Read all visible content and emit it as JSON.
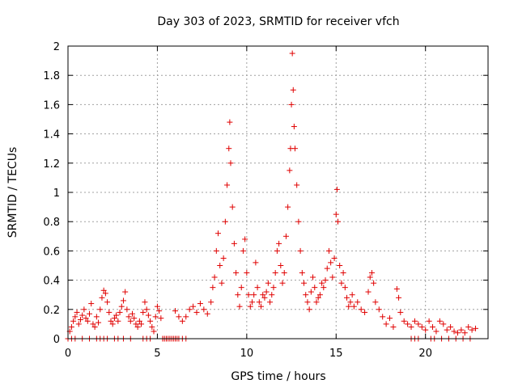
{
  "chart_data": {
    "type": "scatter",
    "title": "Day 303 of 2023, SRMTID for receiver vfch",
    "xlabel": "GPS time / hours",
    "ylabel": "SRMTID / TECUs",
    "xlim": [
      0,
      23.5
    ],
    "ylim": [
      0,
      2
    ],
    "xticks": [
      0,
      5,
      10,
      15,
      20
    ],
    "xtick_labels": [
      "0",
      "5",
      "10",
      "15",
      "20"
    ],
    "yticks": [
      0,
      0.2,
      0.4,
      0.6,
      0.8,
      1.0,
      1.2,
      1.4,
      1.6,
      1.8,
      2.0
    ],
    "ytick_labels": [
      "0",
      "0.2",
      "0.4",
      "0.6",
      "0.8",
      "1",
      "1.2",
      "1.4",
      "1.6",
      "1.8",
      "2"
    ],
    "grid": true,
    "marker": "+",
    "color": "#e00000",
    "series": [
      {
        "name": "SRMTID",
        "points": [
          [
            0.0,
            0.0
          ],
          [
            0.1,
            0.05
          ],
          [
            0.2,
            0.08
          ],
          [
            0.3,
            0.12
          ],
          [
            0.4,
            0.15
          ],
          [
            0.5,
            0.18
          ],
          [
            0.6,
            0.1
          ],
          [
            0.7,
            0.13
          ],
          [
            0.8,
            0.16
          ],
          [
            0.9,
            0.2
          ],
          [
            1.0,
            0.14
          ],
          [
            1.1,
            0.12
          ],
          [
            1.2,
            0.17
          ],
          [
            1.3,
            0.24
          ],
          [
            1.4,
            0.1
          ],
          [
            1.5,
            0.08
          ],
          [
            1.6,
            0.15
          ],
          [
            1.7,
            0.11
          ],
          [
            1.8,
            0.2
          ],
          [
            1.9,
            0.28
          ],
          [
            2.0,
            0.33
          ],
          [
            2.1,
            0.31
          ],
          [
            2.2,
            0.25
          ],
          [
            2.3,
            0.18
          ],
          [
            2.4,
            0.12
          ],
          [
            2.5,
            0.1
          ],
          [
            2.6,
            0.14
          ],
          [
            2.7,
            0.16
          ],
          [
            2.8,
            0.12
          ],
          [
            2.9,
            0.18
          ],
          [
            3.0,
            0.22
          ],
          [
            3.1,
            0.26
          ],
          [
            3.2,
            0.32
          ],
          [
            3.3,
            0.2
          ],
          [
            3.4,
            0.15
          ],
          [
            3.5,
            0.12
          ],
          [
            3.6,
            0.17
          ],
          [
            3.7,
            0.14
          ],
          [
            3.8,
            0.1
          ],
          [
            3.9,
            0.08
          ],
          [
            4.0,
            0.12
          ],
          [
            4.1,
            0.1
          ],
          [
            4.2,
            0.18
          ],
          [
            4.3,
            0.25
          ],
          [
            4.4,
            0.2
          ],
          [
            4.5,
            0.16
          ],
          [
            4.6,
            0.12
          ],
          [
            4.7,
            0.08
          ],
          [
            4.8,
            0.05
          ],
          [
            4.9,
            0.15
          ],
          [
            5.0,
            0.22
          ],
          [
            5.1,
            0.19
          ],
          [
            5.2,
            0.14
          ],
          [
            5.3,
            0.0
          ],
          [
            5.5,
            0.0
          ],
          [
            6.0,
            0.19
          ],
          [
            6.2,
            0.15
          ],
          [
            6.4,
            0.12
          ],
          [
            6.6,
            0.15
          ],
          [
            6.8,
            0.2
          ],
          [
            7.0,
            0.22
          ],
          [
            7.2,
            0.18
          ],
          [
            7.4,
            0.24
          ],
          [
            7.6,
            0.2
          ],
          [
            7.8,
            0.17
          ],
          [
            8.0,
            0.25
          ],
          [
            8.1,
            0.35
          ],
          [
            8.2,
            0.42
          ],
          [
            8.3,
            0.6
          ],
          [
            8.4,
            0.72
          ],
          [
            8.5,
            0.5
          ],
          [
            8.6,
            0.38
          ],
          [
            8.7,
            0.55
          ],
          [
            8.8,
            0.8
          ],
          [
            8.9,
            1.05
          ],
          [
            9.0,
            1.3
          ],
          [
            9.05,
            1.48
          ],
          [
            9.1,
            1.2
          ],
          [
            9.2,
            0.9
          ],
          [
            9.3,
            0.65
          ],
          [
            9.4,
            0.45
          ],
          [
            9.5,
            0.3
          ],
          [
            9.6,
            0.22
          ],
          [
            9.7,
            0.35
          ],
          [
            9.8,
            0.6
          ],
          [
            9.9,
            0.68
          ],
          [
            10.0,
            0.45
          ],
          [
            10.1,
            0.3
          ],
          [
            10.2,
            0.22
          ],
          [
            10.3,
            0.25
          ],
          [
            10.4,
            0.3
          ],
          [
            10.5,
            0.52
          ],
          [
            10.6,
            0.35
          ],
          [
            10.7,
            0.25
          ],
          [
            10.8,
            0.22
          ],
          [
            10.9,
            0.3
          ],
          [
            11.0,
            0.28
          ],
          [
            11.1,
            0.32
          ],
          [
            11.2,
            0.38
          ],
          [
            11.3,
            0.25
          ],
          [
            11.4,
            0.3
          ],
          [
            11.5,
            0.35
          ],
          [
            11.6,
            0.45
          ],
          [
            11.7,
            0.6
          ],
          [
            11.8,
            0.65
          ],
          [
            11.9,
            0.5
          ],
          [
            12.0,
            0.38
          ],
          [
            12.1,
            0.45
          ],
          [
            12.2,
            0.7
          ],
          [
            12.3,
            0.9
          ],
          [
            12.4,
            1.15
          ],
          [
            12.45,
            1.3
          ],
          [
            12.5,
            1.6
          ],
          [
            12.55,
            1.95
          ],
          [
            12.6,
            1.7
          ],
          [
            12.65,
            1.45
          ],
          [
            12.7,
            1.3
          ],
          [
            12.8,
            1.05
          ],
          [
            12.9,
            0.8
          ],
          [
            13.0,
            0.6
          ],
          [
            13.1,
            0.45
          ],
          [
            13.2,
            0.38
          ],
          [
            13.3,
            0.3
          ],
          [
            13.4,
            0.25
          ],
          [
            13.5,
            0.2
          ],
          [
            13.6,
            0.32
          ],
          [
            13.7,
            0.42
          ],
          [
            13.8,
            0.35
          ],
          [
            13.9,
            0.25
          ],
          [
            14.0,
            0.28
          ],
          [
            14.1,
            0.3
          ],
          [
            14.2,
            0.38
          ],
          [
            14.3,
            0.35
          ],
          [
            14.4,
            0.4
          ],
          [
            14.5,
            0.48
          ],
          [
            14.6,
            0.6
          ],
          [
            14.7,
            0.52
          ],
          [
            14.8,
            0.42
          ],
          [
            14.9,
            0.55
          ],
          [
            15.0,
            0.85
          ],
          [
            15.05,
            1.02
          ],
          [
            15.1,
            0.8
          ],
          [
            15.2,
            0.5
          ],
          [
            15.3,
            0.38
          ],
          [
            15.4,
            0.45
          ],
          [
            15.5,
            0.35
          ],
          [
            15.6,
            0.28
          ],
          [
            15.7,
            0.22
          ],
          [
            15.8,
            0.25
          ],
          [
            15.9,
            0.3
          ],
          [
            16.0,
            0.22
          ],
          [
            16.2,
            0.25
          ],
          [
            16.4,
            0.2
          ],
          [
            16.6,
            0.18
          ],
          [
            16.8,
            0.32
          ],
          [
            16.9,
            0.42
          ],
          [
            17.0,
            0.45
          ],
          [
            17.1,
            0.38
          ],
          [
            17.2,
            0.25
          ],
          [
            17.4,
            0.2
          ],
          [
            17.6,
            0.15
          ],
          [
            17.8,
            0.1
          ],
          [
            18.0,
            0.14
          ],
          [
            18.2,
            0.08
          ],
          [
            18.4,
            0.34
          ],
          [
            18.5,
            0.28
          ],
          [
            18.6,
            0.18
          ],
          [
            18.8,
            0.12
          ],
          [
            19.0,
            0.1
          ],
          [
            19.2,
            0.08
          ],
          [
            19.4,
            0.12
          ],
          [
            19.6,
            0.1
          ],
          [
            19.8,
            0.08
          ],
          [
            20.0,
            0.06
          ],
          [
            20.2,
            0.12
          ],
          [
            20.4,
            0.08
          ],
          [
            20.6,
            0.05
          ],
          [
            20.8,
            0.12
          ],
          [
            21.0,
            0.1
          ],
          [
            21.2,
            0.06
          ],
          [
            21.4,
            0.08
          ],
          [
            21.6,
            0.05
          ],
          [
            21.8,
            0.04
          ],
          [
            22.0,
            0.06
          ],
          [
            22.2,
            0.04
          ],
          [
            22.4,
            0.08
          ],
          [
            22.6,
            0.06
          ],
          [
            22.8,
            0.07
          ]
        ]
      }
    ],
    "zero_points_x": [
      0.2,
      0.4,
      0.8,
      1.2,
      1.6,
      1.8,
      2.0,
      2.2,
      2.6,
      2.8,
      3.1,
      3.5,
      4.2,
      4.4,
      4.6,
      5.3,
      5.4,
      5.5,
      5.6,
      5.7,
      5.8,
      5.9,
      6.0,
      6.1,
      6.2,
      6.4,
      6.6,
      19.2,
      19.4,
      19.6,
      20.3,
      20.5,
      20.9,
      21.3,
      21.7,
      22.1,
      22.5
    ]
  }
}
